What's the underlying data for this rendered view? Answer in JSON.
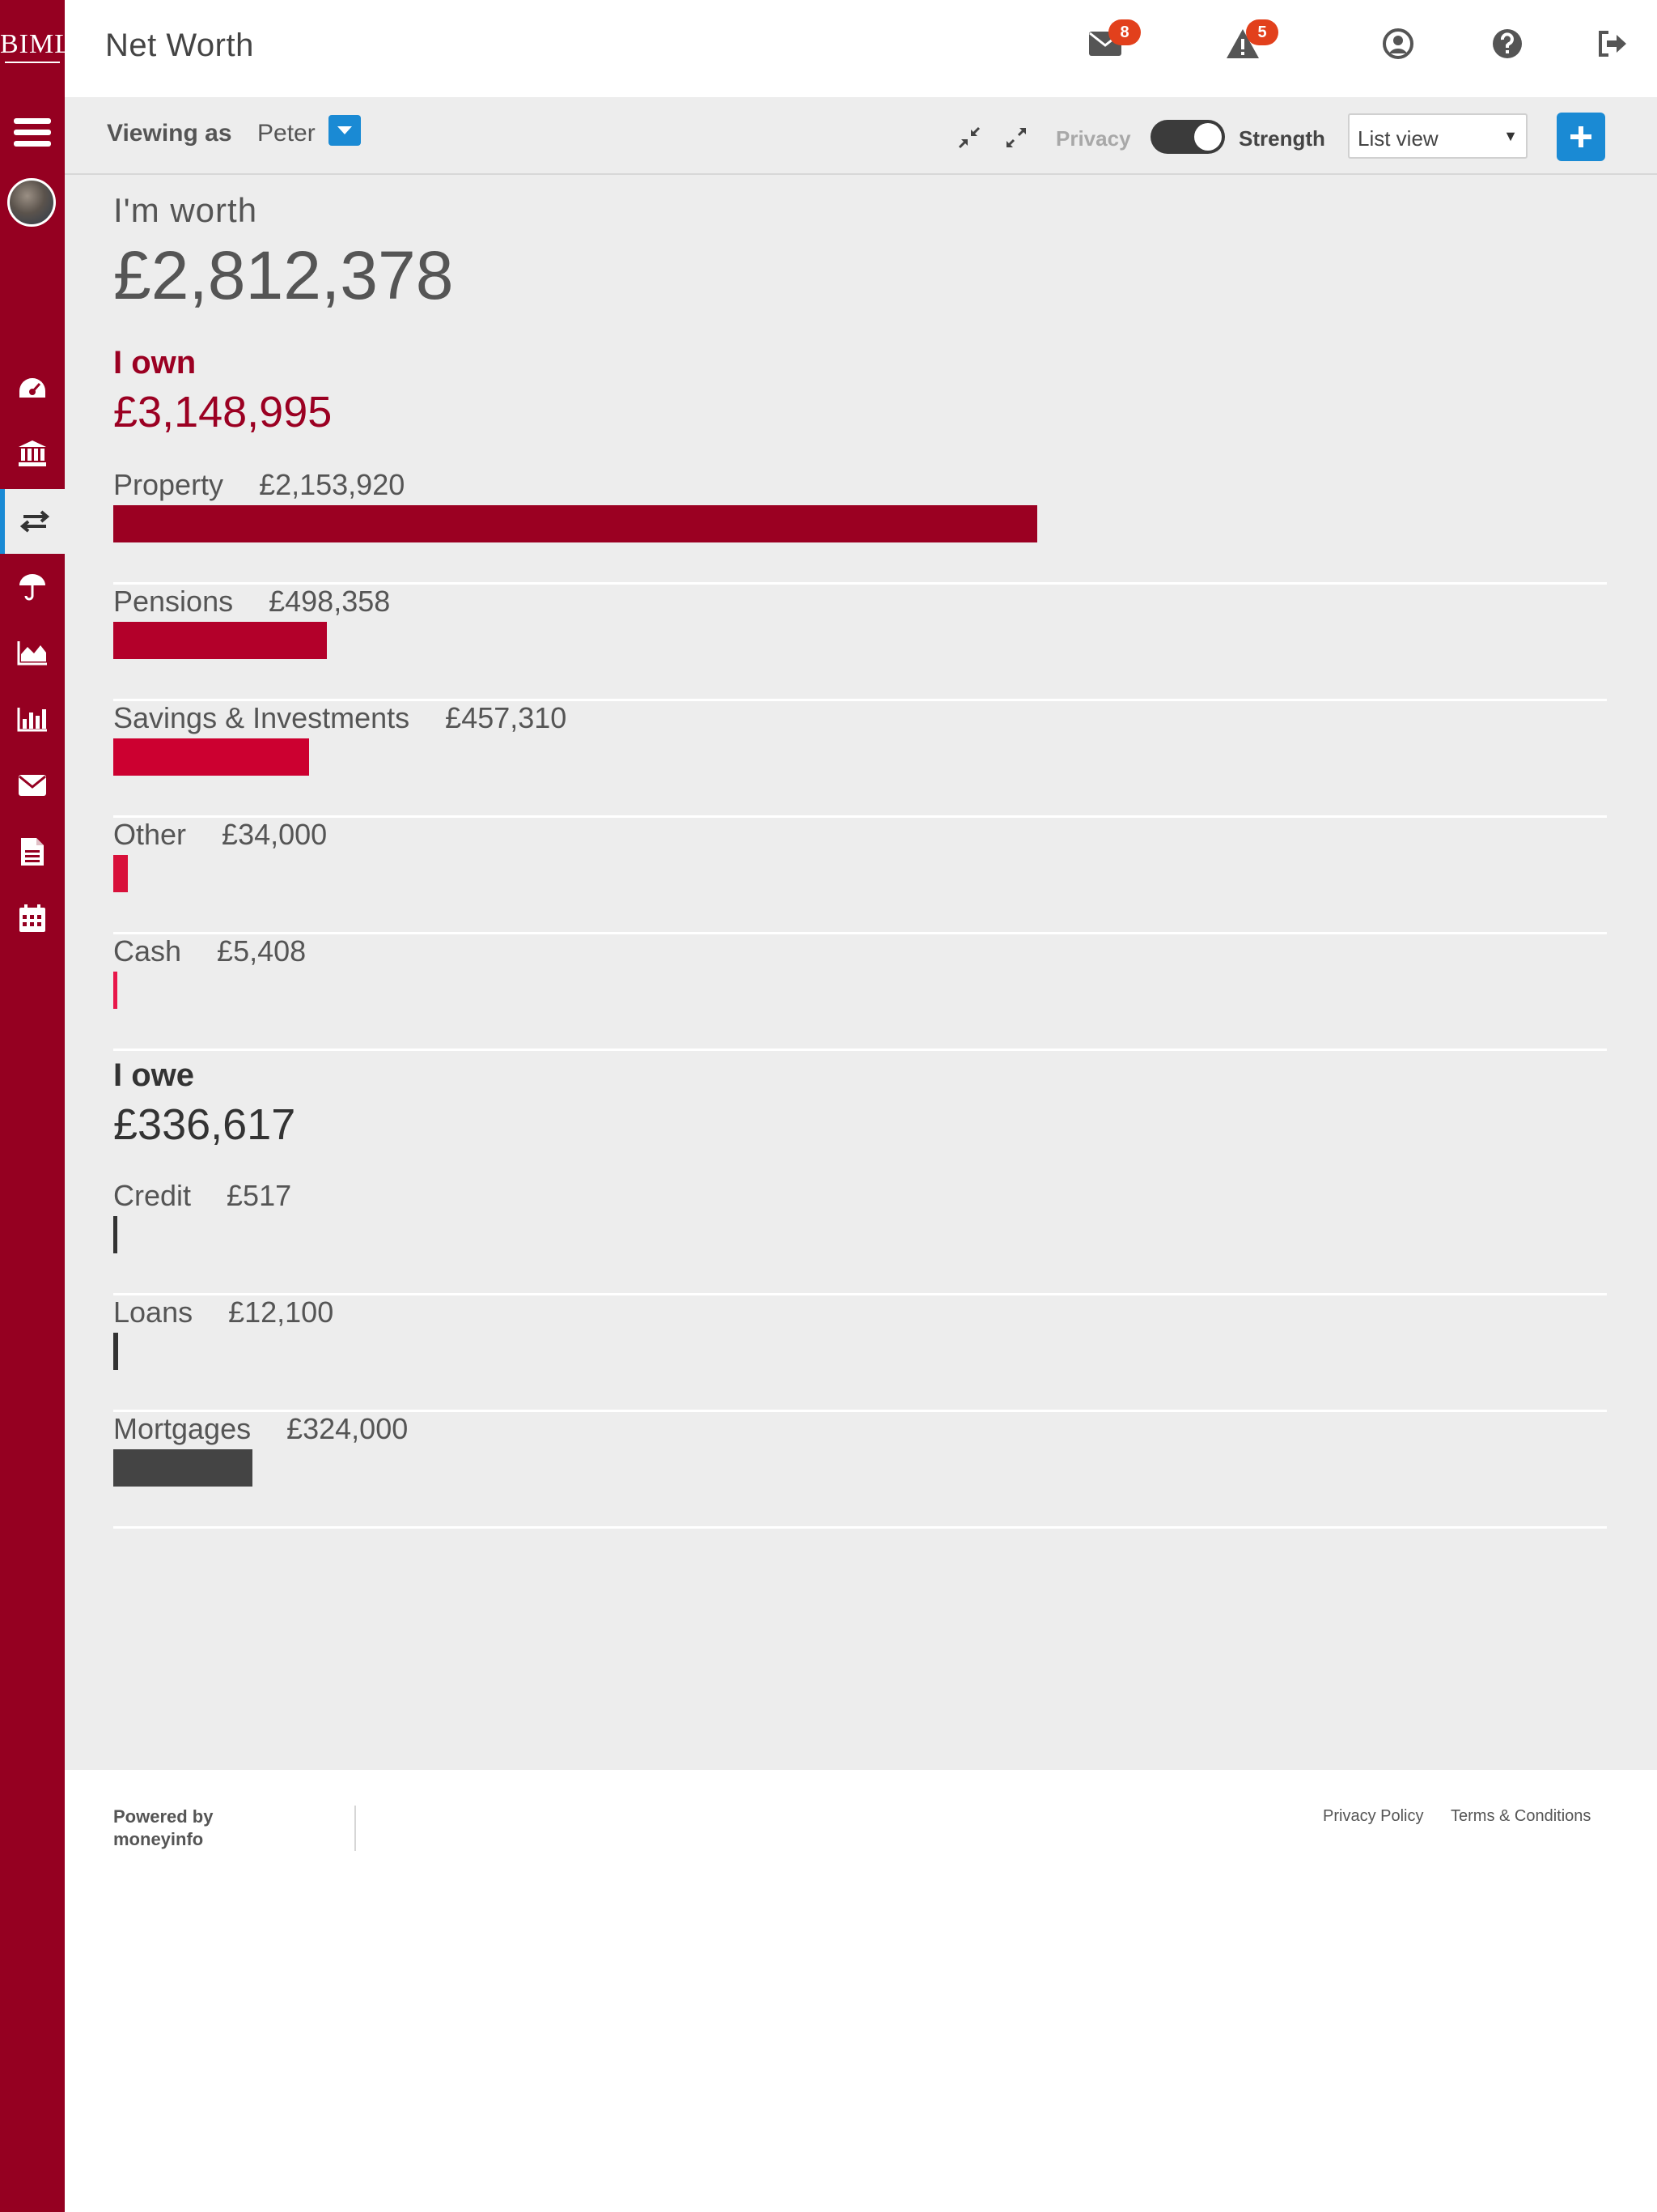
{
  "brand": {
    "logo_text": "BIML",
    "primary_color": "#950021",
    "accent_color": "#1a8ad4"
  },
  "sidebar": {
    "items": [
      {
        "name": "menu-icon",
        "active": false
      },
      {
        "name": "dashboard-icon",
        "active": false
      },
      {
        "name": "bank-icon",
        "active": false
      },
      {
        "name": "transfer-icon",
        "active": true
      },
      {
        "name": "umbrella-icon",
        "active": false
      },
      {
        "name": "area-chart-icon",
        "active": false
      },
      {
        "name": "bar-chart-icon",
        "active": false
      },
      {
        "name": "mail-icon",
        "active": false
      },
      {
        "name": "document-icon",
        "active": false
      },
      {
        "name": "calendar-icon",
        "active": false
      }
    ]
  },
  "header": {
    "title": "Net Worth",
    "messages_count": "8",
    "alerts_count": "5"
  },
  "toolbar": {
    "viewing_as_label": "Viewing as",
    "viewer_name": "Peter",
    "privacy_label": "Privacy",
    "privacy_on": true,
    "strength_label": "Strength",
    "view_select_value": "List view"
  },
  "summary": {
    "worth_label": "I'm worth",
    "worth_value": "£2,812,378"
  },
  "own": {
    "heading": "I own",
    "total": "£3,148,995",
    "bar_color": "#9b0022",
    "items": [
      {
        "label": "Property",
        "amount": "£2,153,920",
        "value": 2153920,
        "color": "#9b0022"
      },
      {
        "label": "Pensions",
        "amount": "£498,358",
        "value": 498358,
        "color": "#b3002a"
      },
      {
        "label": "Savings & Investments",
        "amount": "£457,310",
        "value": 457310,
        "color": "#cc0030"
      },
      {
        "label": "Other",
        "amount": "£34,000",
        "value": 34000,
        "color": "#d8103a"
      },
      {
        "label": "Cash",
        "amount": "£5,408",
        "value": 5408,
        "color": "#e8174a"
      }
    ]
  },
  "owe": {
    "heading": "I owe",
    "total": "£336,617",
    "items": [
      {
        "label": "Credit",
        "amount": "£517",
        "value": 517,
        "color": "#333333"
      },
      {
        "label": "Loans",
        "amount": "£12,100",
        "value": 12100,
        "color": "#333333"
      },
      {
        "label": "Mortgages",
        "amount": "£324,000",
        "value": 324000,
        "color": "#444444"
      }
    ]
  },
  "footer": {
    "powered_by": "Powered by moneyinfo",
    "privacy_policy": "Privacy Policy",
    "terms": "Terms & Conditions"
  }
}
